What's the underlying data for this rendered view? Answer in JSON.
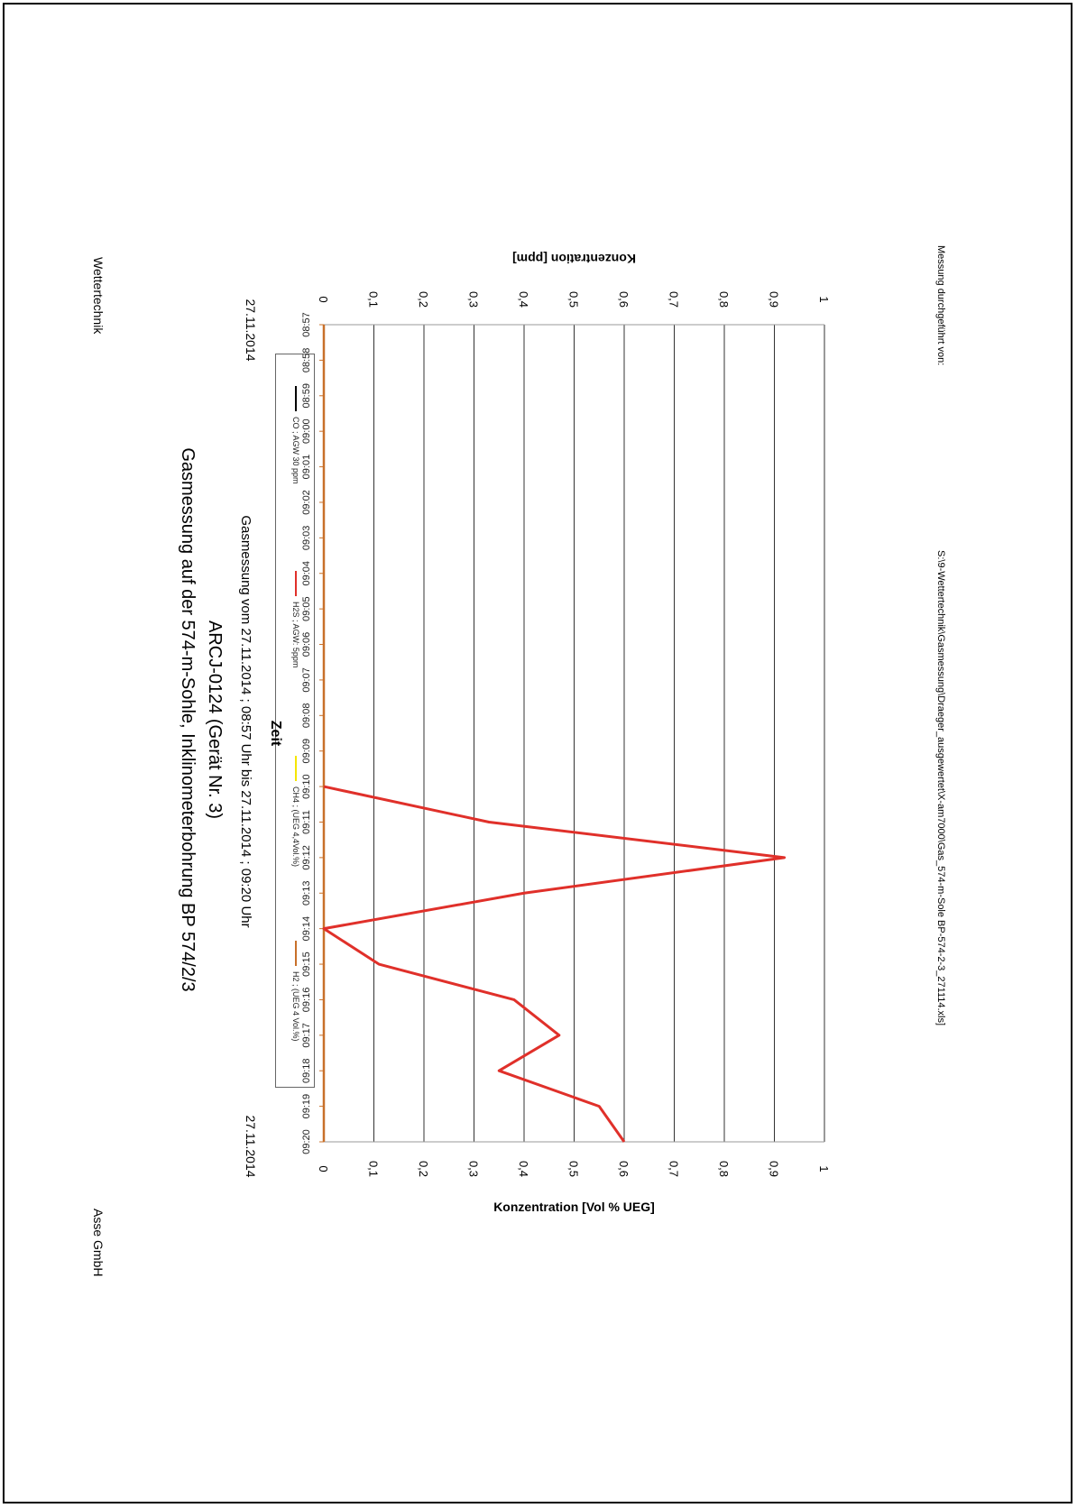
{
  "header": {
    "left": "Wettertechnik",
    "right": "Asse GmbH"
  },
  "footer": {
    "signature": "Messung durchgeführt von:",
    "path": "S:\\9-Wettertechnik\\Gasmessung\\Draeger_ausgewertet\\X-am7000\\Gas_574-m-Sole BP-574-2-3_271114.xls]"
  },
  "colors": {
    "accent_h2s": "#e0302a",
    "co": "#000000",
    "ch4": "#f5e600",
    "h2": "#c8702a",
    "grid": "#000000"
  },
  "chart_data": {
    "type": "line",
    "title": "Gasmessung auf der 574-m-Sohle, Inklinometerbohrung BP 574/2/3",
    "title_line2": "ARCJ-0124 (Gerät Nr. 3)",
    "subtitle": "Gasmessung vom 27.11.2014 ; 08:57 Uhr  bis 27.11.2014 ; 09:20 Uhr",
    "xlabel": "Zeit",
    "ylabel_left": "Konzentration [ppm]",
    "ylabel_right": "Konzentration [Vol % UEG]",
    "date_left": "27.11.2014",
    "date_right": "27.11.2014",
    "ylim": [
      0,
      1
    ],
    "y_ticks": [
      "0",
      "0,1",
      "0,2",
      "0,3",
      "0,4",
      "0,5",
      "0,6",
      "0,7",
      "0,8",
      "0,9",
      "1"
    ],
    "x": [
      "08:57",
      "08:58",
      "08:59",
      "09:00",
      "09:01",
      "09:02",
      "09:03",
      "09:04",
      "09:05",
      "09:06",
      "09:07",
      "09:08",
      "09:09",
      "09:10",
      "09:11",
      "09:12",
      "09:13",
      "09:14",
      "09:15",
      "09:16",
      "09:17",
      "09:18",
      "09:19",
      "09:20"
    ],
    "grid": true,
    "legend_position": "top",
    "series": [
      {
        "name": "CO ; AGW 30 ppm",
        "color": "#000000",
        "axis": "left",
        "values": [
          null,
          null,
          null,
          null,
          null,
          null,
          null,
          null,
          null,
          null,
          null,
          null,
          null,
          null,
          null,
          null,
          null,
          null,
          null,
          null,
          null,
          null,
          null,
          null
        ]
      },
      {
        "name": "H2S ; AGW: 5ppm",
        "color": "#e0302a",
        "axis": "left",
        "values": [
          null,
          null,
          null,
          null,
          null,
          null,
          null,
          null,
          null,
          null,
          null,
          null,
          null,
          0,
          0.33,
          0.92,
          0.4,
          0,
          0.11,
          0.38,
          0.47,
          0.35,
          0.55,
          0.6
        ]
      },
      {
        "name": "CH4 ; (UEG 4,4Vol.%)",
        "color": "#f5e600",
        "axis": "right",
        "values": [
          null,
          null,
          null,
          null,
          null,
          null,
          null,
          null,
          null,
          null,
          null,
          null,
          null,
          null,
          null,
          null,
          null,
          null,
          null,
          null,
          null,
          null,
          null,
          null
        ]
      },
      {
        "name": "H2 ; (UEG 4 Vol.%)",
        "color": "#c8702a",
        "axis": "right",
        "values": [
          0,
          0,
          0,
          0,
          0,
          0,
          0,
          0,
          0,
          0,
          0,
          0,
          0,
          0,
          0,
          0,
          0,
          0,
          0,
          0,
          0,
          0,
          0,
          0
        ]
      }
    ]
  }
}
